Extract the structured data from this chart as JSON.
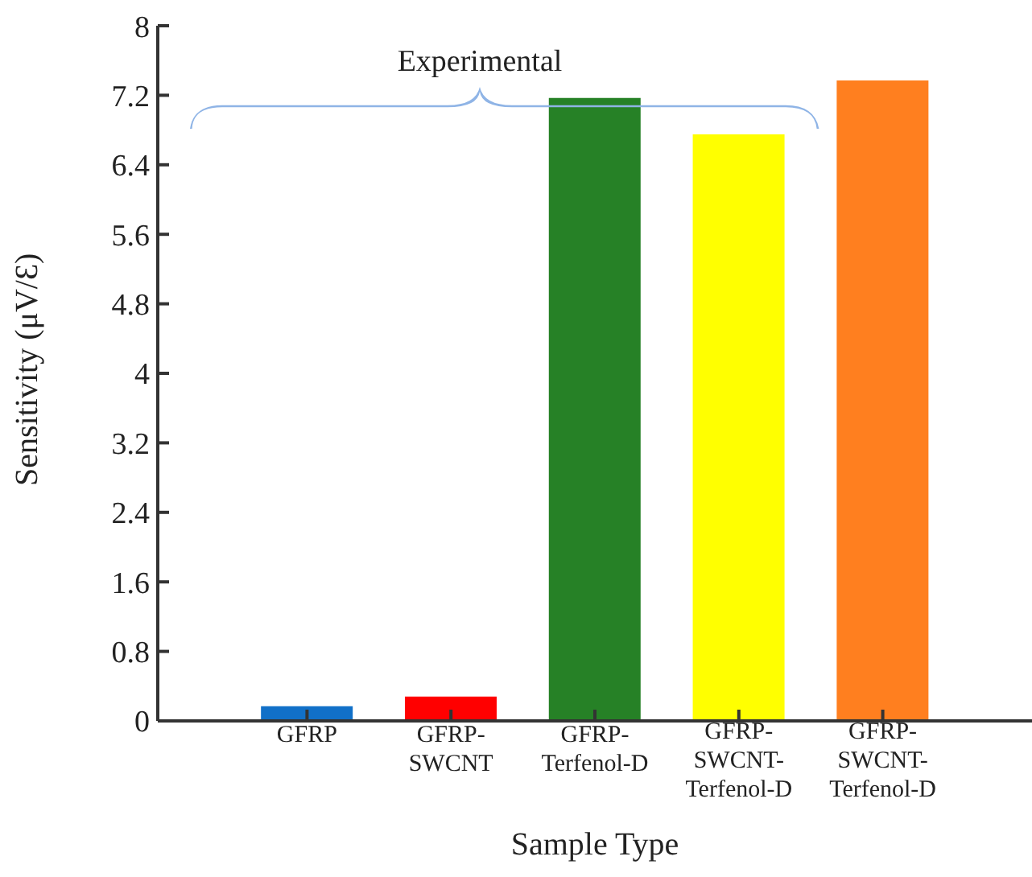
{
  "chart_data": {
    "type": "bar",
    "xlabel": "Sample Type",
    "ylabel": "Sensitivity (μV/Ɛ)",
    "categories": [
      "GFRP",
      "GFRP-SWCNT",
      "GFRP-Terfenol-D",
      "GFRP-SWCNT-Terfenol-D",
      "GFRP-SWCNT-Terfenol-D"
    ],
    "values": [
      0.17,
      0.28,
      7.17,
      6.75,
      7.37
    ],
    "colors": [
      "#1170c8",
      "#ff0000",
      "#268126",
      "#ffff00",
      "#ff7f1f"
    ],
    "ylim": [
      0,
      8
    ],
    "yticks": [
      0,
      0.8,
      1.6,
      2.4,
      3.2,
      4,
      4.8,
      5.6,
      6.4,
      7.2,
      8
    ],
    "annotations": [
      "Experimental"
    ],
    "grid": false,
    "legend": false
  }
}
